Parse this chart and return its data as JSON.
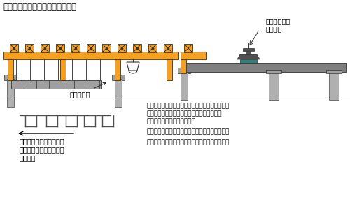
{
  "title": "従来のスパンバイスパン工法の例",
  "bg_color": "#ffffff",
  "orange": "#F5A020",
  "gray": "#808080",
  "dark_gray": "#505050",
  "light_gray": "#B0B0B0",
  "pier_gray": "#A0A0A0",
  "teal": "#308080",
  "text_color": "#000000",
  "step1_line1": "ＳＴＥＰ－１：１スパン分の１主桁セグメントを",
  "step1_line2": "　　　　　　全てエレクションガーダーから",
  "step1_line3": "　　　　　　吊り下げ、接合",
  "step2": "ＳＴＥＰ－２：調整目地打設、ＰＣケーブル緊張",
  "step3": "ＳＴＥＰ－３：ガーダー横移動、次の主桁の架設",
  "label_segment_line1": "セグメントの",
  "label_segment_line2": "橋面運搬",
  "label_kasetu": "架設スパン",
  "label_erection_line1": "エレクションガーダーを",
  "label_erection_line2": "横移動して４本の主桁を",
  "label_erection_line3": "順次架設"
}
